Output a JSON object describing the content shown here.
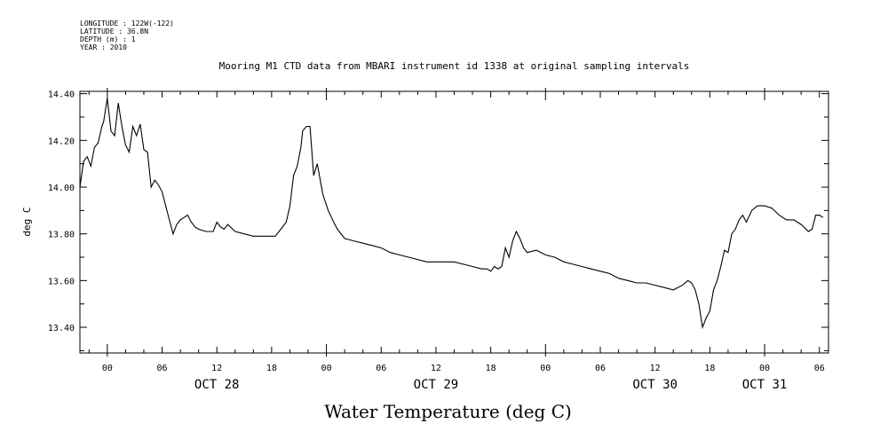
{
  "header": {
    "longitude": "LONGITUDE : 122W(-122)",
    "latitude": "LATITUDE : 36.8N",
    "depth": "DEPTH (m) : 1",
    "year": "YEAR : 2010"
  },
  "caption": "Water Temperature (deg C)",
  "chart_data": {
    "type": "line",
    "title": "Mooring M1 CTD data from MBARI instrument id 1338 at original sampling intervals",
    "ylabel": "deg C",
    "xlabel": "",
    "xlim": [
      "2010-10-27T21:00",
      "2010-10-31T07:00"
    ],
    "ylim": [
      13.29,
      14.41
    ],
    "yticks": [
      13.4,
      13.6,
      13.8,
      14.0,
      14.2,
      14.4
    ],
    "ytick_labels": [
      "13.40",
      "13.60",
      "13.80",
      "14.00",
      "14.20",
      "14.40"
    ],
    "xtick_labels": [
      {
        "t": "2010-10-28T00:00",
        "label": "00"
      },
      {
        "t": "2010-10-28T06:00",
        "label": "06"
      },
      {
        "t": "2010-10-28T12:00",
        "label": "12"
      },
      {
        "t": "2010-10-28T18:00",
        "label": "18"
      },
      {
        "t": "2010-10-29T00:00",
        "label": "00"
      },
      {
        "t": "2010-10-29T06:00",
        "label": "06"
      },
      {
        "t": "2010-10-29T12:00",
        "label": "12"
      },
      {
        "t": "2010-10-29T18:00",
        "label": "18"
      },
      {
        "t": "2010-10-30T00:00",
        "label": "00"
      },
      {
        "t": "2010-10-30T06:00",
        "label": "06"
      },
      {
        "t": "2010-10-30T12:00",
        "label": "12"
      },
      {
        "t": "2010-10-30T18:00",
        "label": "18"
      },
      {
        "t": "2010-10-31T00:00",
        "label": "00"
      },
      {
        "t": "2010-10-31T06:00",
        "label": "06"
      }
    ],
    "day_labels": [
      {
        "t": "2010-10-28T12:00",
        "label": "OCT 28"
      },
      {
        "t": "2010-10-29T12:00",
        "label": "OCT 29"
      },
      {
        "t": "2010-10-30T12:00",
        "label": "OCT 30"
      },
      {
        "t": "2010-10-31T00:00",
        "label": "OCT 31"
      }
    ],
    "grid": false,
    "series": [
      {
        "x": [
          "2010-10-27T21:00",
          "2010-10-27T21:24",
          "2010-10-27T21:48",
          "2010-10-27T22:12",
          "2010-10-27T22:36",
          "2010-10-27T23:00",
          "2010-10-27T23:24",
          "2010-10-27T23:36",
          "2010-10-28T00:00",
          "2010-10-28T00:24",
          "2010-10-28T00:48",
          "2010-10-28T01:12",
          "2010-10-28T01:36",
          "2010-10-28T02:00",
          "2010-10-28T02:24",
          "2010-10-28T02:48",
          "2010-10-28T03:12",
          "2010-10-28T03:36",
          "2010-10-28T04:00",
          "2010-10-28T04:24",
          "2010-10-28T04:48",
          "2010-10-28T05:12",
          "2010-10-28T05:36",
          "2010-10-28T06:00",
          "2010-10-28T06:48",
          "2010-10-28T07:12",
          "2010-10-28T07:36",
          "2010-10-28T08:00",
          "2010-10-28T08:48",
          "2010-10-28T09:12",
          "2010-10-28T09:36",
          "2010-10-28T10:00",
          "2010-10-28T10:48",
          "2010-10-28T11:36",
          "2010-10-28T12:00",
          "2010-10-28T12:24",
          "2010-10-28T12:48",
          "2010-10-28T13:12",
          "2010-10-28T14:00",
          "2010-10-28T15:00",
          "2010-10-28T16:00",
          "2010-10-28T17:00",
          "2010-10-28T17:48",
          "2010-10-28T18:24",
          "2010-10-28T19:00",
          "2010-10-28T19:36",
          "2010-10-28T20:00",
          "2010-10-28T20:24",
          "2010-10-28T20:48",
          "2010-10-28T21:12",
          "2010-10-28T21:24",
          "2010-10-28T21:48",
          "2010-10-28T22:12",
          "2010-10-28T22:36",
          "2010-10-28T23:00",
          "2010-10-28T23:36",
          "2010-10-29T00:12",
          "2010-10-29T00:48",
          "2010-10-29T01:12",
          "2010-10-29T02:00",
          "2010-10-29T03:00",
          "2010-10-29T04:00",
          "2010-10-29T05:00",
          "2010-10-29T06:00",
          "2010-10-29T07:00",
          "2010-10-29T08:00",
          "2010-10-29T09:00",
          "2010-10-29T10:00",
          "2010-10-29T11:00",
          "2010-10-29T12:00",
          "2010-10-29T13:00",
          "2010-10-29T14:00",
          "2010-10-29T15:00",
          "2010-10-29T16:00",
          "2010-10-29T17:00",
          "2010-10-29T17:36",
          "2010-10-29T18:00",
          "2010-10-29T18:24",
          "2010-10-29T18:48",
          "2010-10-29T19:12",
          "2010-10-29T19:36",
          "2010-10-29T20:00",
          "2010-10-29T20:24",
          "2010-10-29T20:48",
          "2010-10-29T21:12",
          "2010-10-29T21:36",
          "2010-10-29T22:00",
          "2010-10-29T23:00",
          "2010-10-30T00:00",
          "2010-10-30T01:00",
          "2010-10-30T02:00",
          "2010-10-30T03:00",
          "2010-10-30T04:00",
          "2010-10-30T05:00",
          "2010-10-30T06:00",
          "2010-10-30T07:00",
          "2010-10-30T08:00",
          "2010-10-30T09:00",
          "2010-10-30T10:00",
          "2010-10-30T11:00",
          "2010-10-30T12:00",
          "2010-10-30T13:00",
          "2010-10-30T14:00",
          "2010-10-30T15:00",
          "2010-10-30T15:36",
          "2010-10-30T16:00",
          "2010-10-30T16:24",
          "2010-10-30T16:48",
          "2010-10-30T17:12",
          "2010-10-30T17:36",
          "2010-10-30T18:00",
          "2010-10-30T18:24",
          "2010-10-30T18:48",
          "2010-10-30T19:12",
          "2010-10-30T19:36",
          "2010-10-30T20:00",
          "2010-10-30T20:24",
          "2010-10-30T20:48",
          "2010-10-30T21:12",
          "2010-10-30T21:36",
          "2010-10-30T22:00",
          "2010-10-30T22:36",
          "2010-10-30T23:12",
          "2010-10-31T00:00",
          "2010-10-31T00:48",
          "2010-10-31T01:36",
          "2010-10-31T02:24",
          "2010-10-31T03:12",
          "2010-10-31T04:00",
          "2010-10-31T04:48",
          "2010-10-31T05:12",
          "2010-10-31T05:36",
          "2010-10-31T06:00",
          "2010-10-31T06:24"
        ],
        "y": [
          14.0,
          14.11,
          14.13,
          14.09,
          14.17,
          14.19,
          14.26,
          14.28,
          14.38,
          14.24,
          14.22,
          14.36,
          14.26,
          14.18,
          14.15,
          14.26,
          14.22,
          14.27,
          14.16,
          14.15,
          14.0,
          14.03,
          14.01,
          13.98,
          13.86,
          13.8,
          13.84,
          13.86,
          13.88,
          13.85,
          13.83,
          13.82,
          13.81,
          13.81,
          13.85,
          13.83,
          13.82,
          13.84,
          13.81,
          13.8,
          13.79,
          13.79,
          13.79,
          13.79,
          13.82,
          13.85,
          13.92,
          14.05,
          14.09,
          14.17,
          14.24,
          14.26,
          14.26,
          14.05,
          14.1,
          13.97,
          13.9,
          13.85,
          13.82,
          13.78,
          13.77,
          13.76,
          13.75,
          13.74,
          13.72,
          13.71,
          13.7,
          13.69,
          13.68,
          13.68,
          13.68,
          13.68,
          13.67,
          13.66,
          13.65,
          13.65,
          13.64,
          13.66,
          13.65,
          13.66,
          13.74,
          13.7,
          13.77,
          13.81,
          13.78,
          13.74,
          13.72,
          13.73,
          13.71,
          13.7,
          13.68,
          13.67,
          13.66,
          13.65,
          13.64,
          13.63,
          13.61,
          13.6,
          13.59,
          13.59,
          13.58,
          13.57,
          13.56,
          13.58,
          13.6,
          13.59,
          13.56,
          13.5,
          13.4,
          13.44,
          13.47,
          13.56,
          13.6,
          13.66,
          13.73,
          13.72,
          13.8,
          13.82,
          13.86,
          13.88,
          13.85,
          13.9,
          13.92,
          13.92,
          13.91,
          13.88,
          13.86,
          13.86,
          13.84,
          13.81,
          13.82,
          13.88,
          13.88,
          13.87
        ]
      }
    ]
  }
}
